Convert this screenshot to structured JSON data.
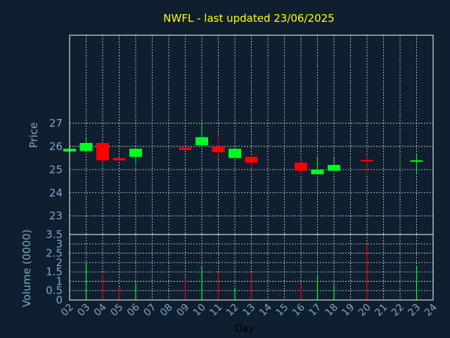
{
  "colors": {
    "background": "#0f1f30",
    "panel_border": "#ffffff",
    "grid": "#ffffff",
    "title": "#ffff00",
    "axis_text": "#7ea6c8",
    "xlabel_text": "#000000",
    "up": "#00ff22",
    "down": "#ff0000"
  },
  "chart_data": [
    {
      "type": "candlestick",
      "title": "NWFL - last updated 23/06/2025",
      "ylabel": "Price",
      "ylim": [
        22.2,
        30.8
      ],
      "yticks": [
        23,
        24,
        25,
        26,
        27
      ],
      "xlim": [
        2,
        24
      ],
      "grid": true,
      "candles": [
        {
          "day": 2,
          "open": 25.78,
          "close": 25.9,
          "high": 25.9,
          "low": 25.78
        },
        {
          "day": 3,
          "open": 25.8,
          "close": 26.15,
          "high": 26.4,
          "low": 25.8
        },
        {
          "day": 4,
          "open": 26.15,
          "close": 25.4,
          "high": 26.15,
          "low": 25.3
        },
        {
          "day": 5,
          "open": 25.5,
          "close": 25.4,
          "high": 25.5,
          "low": 25.4
        },
        {
          "day": 6,
          "open": 25.55,
          "close": 25.9,
          "high": 25.9,
          "low": 25.25
        },
        {
          "day": 9,
          "open": 25.95,
          "close": 25.85,
          "high": 25.95,
          "low": 25.85
        },
        {
          "day": 10,
          "open": 26.05,
          "close": 26.4,
          "high": 27.05,
          "low": 26.05
        },
        {
          "day": 11,
          "open": 26.0,
          "close": 25.75,
          "high": 26.45,
          "low": 25.45
        },
        {
          "day": 12,
          "open": 25.5,
          "close": 25.9,
          "high": 25.9,
          "low": 25.5
        },
        {
          "day": 13,
          "open": 25.55,
          "close": 25.3,
          "high": 25.6,
          "low": 25.05
        },
        {
          "day": 16,
          "open": 25.3,
          "close": 24.95,
          "high": 25.3,
          "low": 24.8
        },
        {
          "day": 17,
          "open": 24.8,
          "close": 25.0,
          "high": 25.6,
          "low": 24.8
        },
        {
          "day": 18,
          "open": 24.95,
          "close": 25.2,
          "high": 25.55,
          "low": 24.95
        },
        {
          "day": 20,
          "open": 25.42,
          "close": 25.38,
          "high": 25.6,
          "low": 24.8
        },
        {
          "day": 23,
          "open": 25.36,
          "close": 25.4,
          "high": 25.65,
          "low": 24.85
        }
      ]
    },
    {
      "type": "bar",
      "xlabel": "Day",
      "ylabel": "Volume (0000)",
      "ylim": [
        0,
        3.5
      ],
      "yticks": [
        0,
        0.5,
        1,
        1.5,
        2,
        2.5,
        3,
        3.5
      ],
      "xlim": [
        2,
        24
      ],
      "xticks": [
        "02",
        "03",
        "04",
        "05",
        "06",
        "07",
        "08",
        "09",
        "10",
        "11",
        "12",
        "13",
        "14",
        "15",
        "16",
        "17",
        "18",
        "19",
        "20",
        "21",
        "22",
        "23",
        "24"
      ],
      "grid": true,
      "bars": [
        {
          "day": 3,
          "value": 1.95,
          "direction": "up"
        },
        {
          "day": 4,
          "value": 1.4,
          "direction": "down"
        },
        {
          "day": 5,
          "value": 0.7,
          "direction": "down"
        },
        {
          "day": 6,
          "value": 0.95,
          "direction": "up"
        },
        {
          "day": 9,
          "value": 1.05,
          "direction": "down"
        },
        {
          "day": 10,
          "value": 1.85,
          "direction": "up"
        },
        {
          "day": 11,
          "value": 1.5,
          "direction": "down"
        },
        {
          "day": 12,
          "value": 0.65,
          "direction": "up"
        },
        {
          "day": 13,
          "value": 1.45,
          "direction": "down"
        },
        {
          "day": 16,
          "value": 0.85,
          "direction": "down"
        },
        {
          "day": 17,
          "value": 1.3,
          "direction": "up"
        },
        {
          "day": 18,
          "value": 0.85,
          "direction": "up"
        },
        {
          "day": 20,
          "value": 3.0,
          "direction": "down"
        },
        {
          "day": 23,
          "value": 1.85,
          "direction": "up"
        }
      ]
    }
  ]
}
